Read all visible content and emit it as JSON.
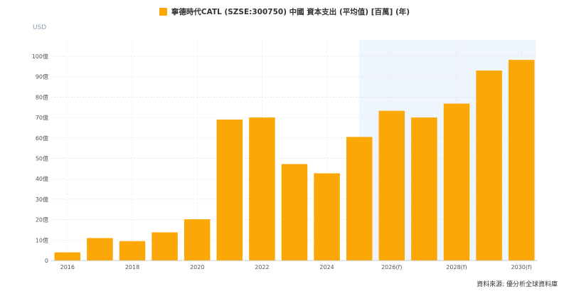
{
  "chart_data": {
    "type": "bar",
    "title": "寧德時代CATL (SZSE:300750) 中國 資本支出 (平均值) [百萬] (年)",
    "unit": "USD",
    "series": [
      {
        "name": "寧德時代CATL (SZSE:300750) 中國 資本支出 (平均值) [百萬] (年)",
        "color": "#FBA705",
        "values": [
          4,
          11,
          9.5,
          13.8,
          20.2,
          69,
          70,
          47.2,
          42.7,
          60.5,
          73.3,
          70,
          76.8,
          93,
          98.2
        ]
      }
    ],
    "categories": [
      "2016",
      "2017",
      "2018",
      "2019",
      "2020",
      "2021",
      "2022",
      "2023",
      "2024",
      "2025",
      "2026(f)",
      "2027(f)",
      "2028(f)",
      "2029(f)",
      "2030(f)"
    ],
    "x_tick_labels": [
      {
        "index": 0,
        "label": "2016"
      },
      {
        "index": 2,
        "label": "2018"
      },
      {
        "index": 4,
        "label": "2020"
      },
      {
        "index": 6,
        "label": "2022"
      },
      {
        "index": 8,
        "label": "2024"
      },
      {
        "index": 10,
        "label": "2026(f)"
      },
      {
        "index": 12,
        "label": "2028(f)"
      },
      {
        "index": 14,
        "label": "2030(f)"
      }
    ],
    "y_ticks": [
      {
        "value": 0,
        "label": "0"
      },
      {
        "value": 10,
        "label": "10億"
      },
      {
        "value": 20,
        "label": "20億"
      },
      {
        "value": 30,
        "label": "30億"
      },
      {
        "value": 40,
        "label": "40億"
      },
      {
        "value": 50,
        "label": "50億"
      },
      {
        "value": 60,
        "label": "60億"
      },
      {
        "value": 70,
        "label": "70億"
      },
      {
        "value": 80,
        "label": "80億"
      },
      {
        "value": 90,
        "label": "90億"
      },
      {
        "value": 100,
        "label": "100億"
      }
    ],
    "ylim": [
      0,
      108
    ],
    "forecast_region_start": "2025",
    "forecast_shade_color": "#EEF5FD",
    "grid": true,
    "legend_position": "top-center"
  },
  "source_text": "資料來源: 優分析全球資料庫"
}
